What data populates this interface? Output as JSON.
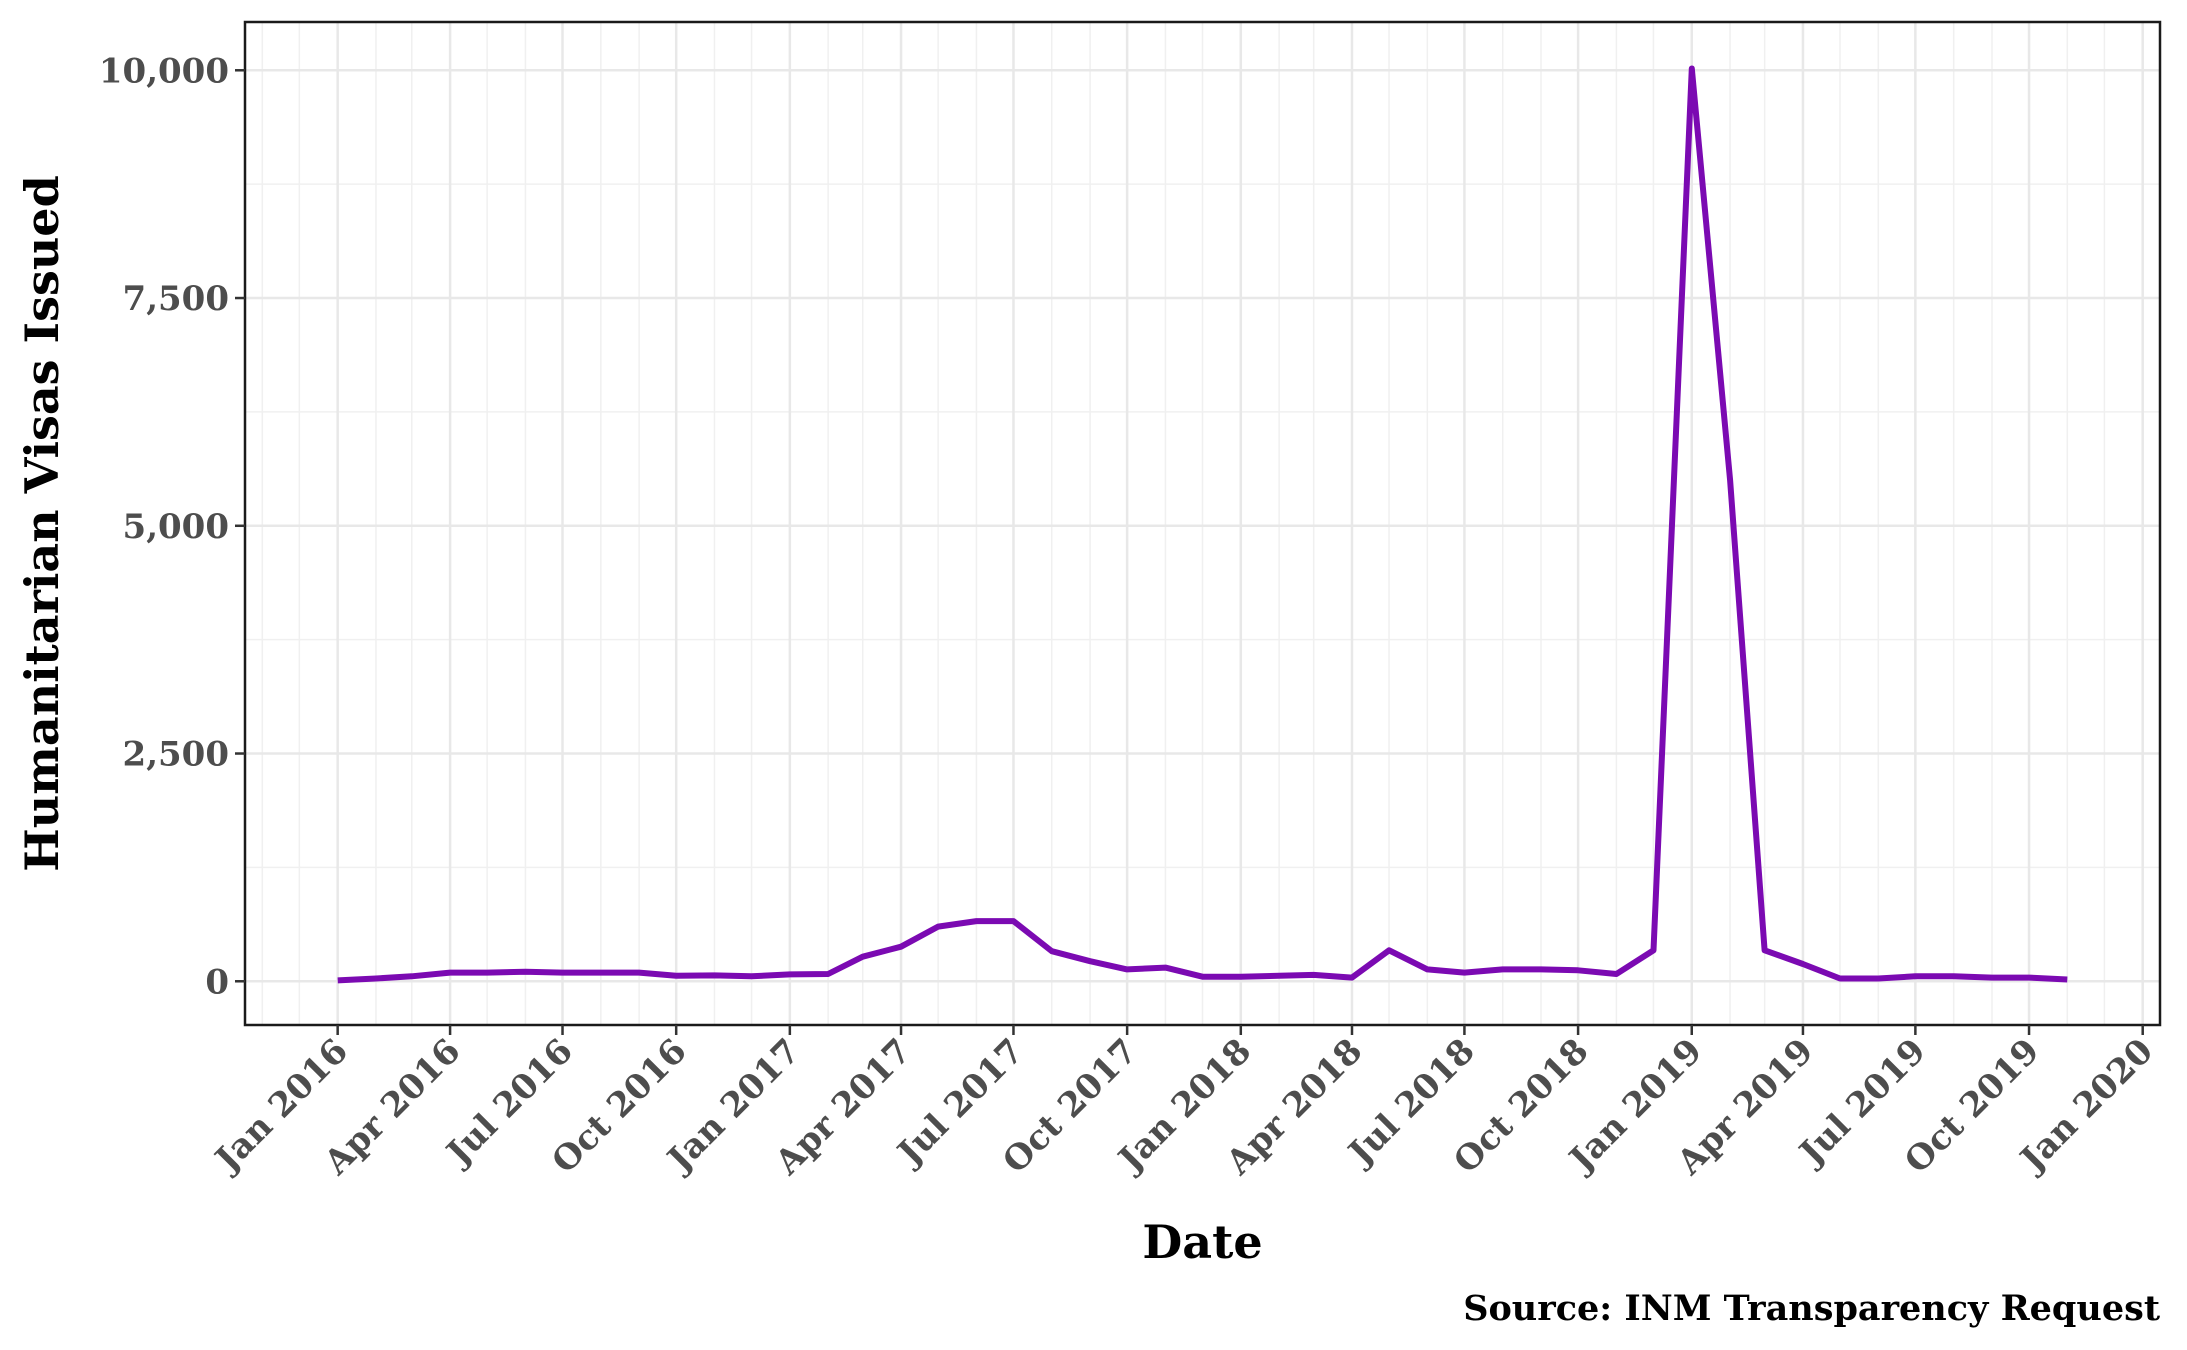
{
  "chart_data": {
    "type": "line",
    "xlabel": "Date",
    "ylabel": "Humanitarian Visas Issued",
    "caption": "Source: INM Transparency Request",
    "x_ticks": [
      "Jan 2016",
      "Apr 2016",
      "Jul 2016",
      "Oct 2016",
      "Jan 2017",
      "Apr 2017",
      "Jul 2017",
      "Oct 2017",
      "Jan 2018",
      "Apr 2018",
      "Jul 2018",
      "Oct 2018",
      "Jan 2019",
      "Apr 2019",
      "Jul 2019",
      "Oct 2019",
      "Jan 2020"
    ],
    "x_tick_dates": [
      "2016-01",
      "2016-04",
      "2016-07",
      "2016-10",
      "2017-01",
      "2017-04",
      "2017-07",
      "2017-10",
      "2018-01",
      "2018-04",
      "2018-07",
      "2018-10",
      "2019-01",
      "2019-04",
      "2019-07",
      "2019-10",
      "2020-01"
    ],
    "y_ticks": [
      "0",
      "2,500",
      "5,000",
      "7,500",
      "10,000"
    ],
    "y_tick_values": [
      0,
      2500,
      5000,
      7500,
      10000
    ],
    "xlim": [
      "2015-10-18",
      "2020-01-15"
    ],
    "ylim": [
      -480,
      10530
    ],
    "grid": true,
    "line_color": "#7B0AB2",
    "x": [
      "2016-01",
      "2016-02",
      "2016-03",
      "2016-04",
      "2016-05",
      "2016-06",
      "2016-07",
      "2016-08",
      "2016-09",
      "2016-10",
      "2016-11",
      "2016-12",
      "2017-01",
      "2017-02",
      "2017-03",
      "2017-04",
      "2017-05",
      "2017-06",
      "2017-07",
      "2017-08",
      "2017-09",
      "2017-10",
      "2017-11",
      "2017-12",
      "2018-01",
      "2018-02",
      "2018-03",
      "2018-04",
      "2018-05",
      "2018-06",
      "2018-07",
      "2018-08",
      "2018-09",
      "2018-10",
      "2018-11",
      "2018-12",
      "2019-01",
      "2019-02",
      "2019-03",
      "2019-04",
      "2019-05",
      "2019-06",
      "2019-07",
      "2019-08",
      "2019-09",
      "2019-10",
      "2019-11"
    ],
    "y": [
      10,
      30,
      55,
      95,
      95,
      105,
      95,
      95,
      95,
      60,
      65,
      55,
      75,
      80,
      270,
      380,
      600,
      660,
      660,
      330,
      220,
      130,
      150,
      50,
      50,
      60,
      70,
      40,
      340,
      130,
      95,
      130,
      130,
      120,
      80,
      340,
      10020,
      5500,
      340,
      190,
      30,
      30,
      55,
      55,
      40,
      40,
      20
    ]
  }
}
